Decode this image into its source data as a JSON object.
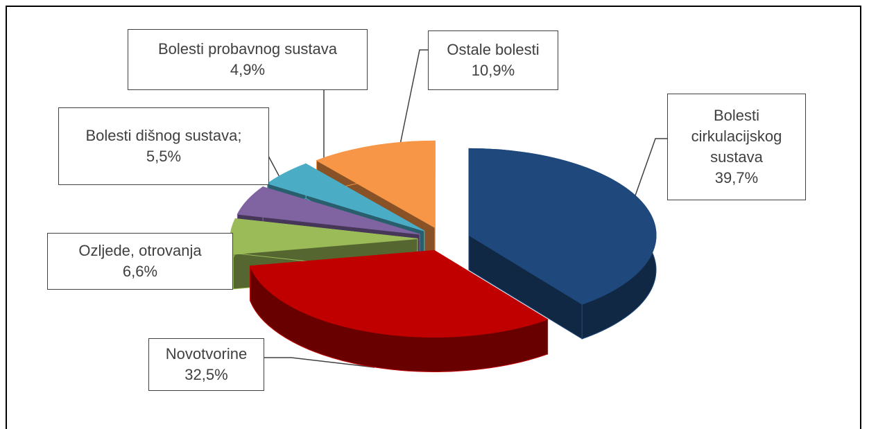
{
  "chart_data": {
    "type": "pie3d",
    "categories": [
      "Bolesti cirkulacijskog sustava",
      "Novotvorine",
      "Ozljede, otrovanja",
      "Bolesti dišnog sustava;",
      "Bolesti probavnog sustava",
      "Ostale bolesti"
    ],
    "values": [
      39.7,
      32.5,
      6.6,
      5.5,
      4.9,
      10.9
    ],
    "value_labels": [
      "39,7%",
      "32,5%",
      "6,6%",
      "5,5%",
      "4,9%",
      "10,9%"
    ],
    "colors": [
      "#1f497d",
      "#c00000",
      "#9bbb59",
      "#8064a2",
      "#4bacc6",
      "#f79646"
    ]
  }
}
